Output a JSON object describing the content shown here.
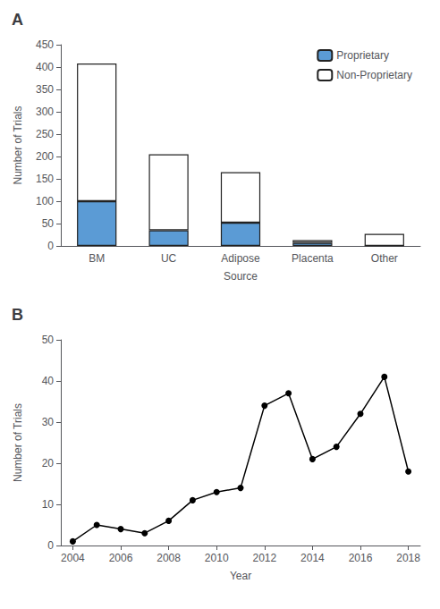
{
  "chart_data": [
    {
      "type": "bar",
      "title": "A",
      "stacked": true,
      "categories": [
        "BM",
        "UC",
        "Adipose",
        "Placenta",
        "Other"
      ],
      "series": [
        {
          "name": "Proprietary",
          "color": "#5B9BD5",
          "values": [
            100,
            35,
            52,
            7,
            0
          ]
        },
        {
          "name": "Non-Proprietary",
          "color": "#FFFFFF",
          "values": [
            308,
            170,
            113,
            6,
            27
          ]
        }
      ],
      "xlabel": "Source",
      "ylabel": "Number of Trials",
      "ylim": [
        0,
        450
      ],
      "yticks": [
        0,
        50,
        100,
        150,
        200,
        250,
        300,
        350,
        400,
        450
      ],
      "legend": "upper right",
      "grid": false
    },
    {
      "type": "line",
      "title": "B",
      "x": [
        2004,
        2005,
        2006,
        2007,
        2008,
        2009,
        2010,
        2011,
        2012,
        2013,
        2014,
        2015,
        2016,
        2017,
        2018
      ],
      "values": [
        1,
        5,
        4,
        3,
        6,
        11,
        13,
        14,
        34,
        37,
        21,
        24,
        32,
        41,
        18
      ],
      "color": "#000000",
      "marker": "circle",
      "xlabel": "Year",
      "ylabel": "Number of Trials",
      "xlim": [
        2003.5,
        2018.5
      ],
      "xticks": [
        2004,
        2006,
        2008,
        2010,
        2012,
        2014,
        2016,
        2018
      ],
      "ylim": [
        0,
        50
      ],
      "yticks": [
        0,
        10,
        20,
        30,
        40,
        50
      ],
      "grid": false
    }
  ]
}
